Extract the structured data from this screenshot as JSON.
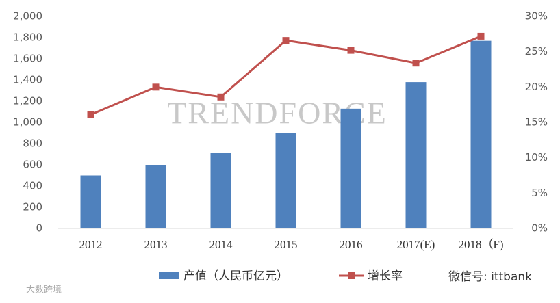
{
  "chart_data": {
    "type": "bar-line",
    "categories": [
      "2012",
      "2013",
      "2014",
      "2015",
      "2016",
      "2017(E)",
      "2018（F)"
    ],
    "series": [
      {
        "name": "产值（人民币亿元）",
        "type": "bar",
        "color": "#4f81bd",
        "values": [
          500,
          600,
          715,
          900,
          1130,
          1380,
          1770
        ]
      },
      {
        "name": "增长率",
        "type": "line",
        "axis": "y2",
        "color": "#c0504d",
        "values": [
          16.1,
          20.0,
          18.6,
          26.6,
          25.2,
          23.4,
          27.2
        ]
      }
    ],
    "ylim": [
      0,
      2000
    ],
    "yticks": [
      0,
      200,
      400,
      600,
      800,
      {
        "value": 1000,
        "label": "1,000"
      },
      {
        "value": 1200,
        "label": "1,200"
      },
      {
        "value": 1400,
        "label": "1,400"
      },
      {
        "value": 1600,
        "label": "1,600"
      },
      {
        "value": 1800,
        "label": "1,800"
      },
      {
        "value": 2000,
        "label": "2,000"
      }
    ],
    "y2lim": [
      0,
      30
    ],
    "y2ticks": [
      {
        "value": 0,
        "label": "0%"
      },
      {
        "value": 5,
        "label": "5%"
      },
      {
        "value": 10,
        "label": "10%"
      },
      {
        "value": 15,
        "label": "15%"
      },
      {
        "value": 20,
        "label": "20%"
      },
      {
        "value": 25,
        "label": "25%"
      },
      {
        "value": 30,
        "label": "30%"
      }
    ],
    "grid": false,
    "legend": "bottom",
    "annotations": [
      "TRENDFORCE",
      "微信号: ittbank",
      "大数跨境"
    ]
  }
}
